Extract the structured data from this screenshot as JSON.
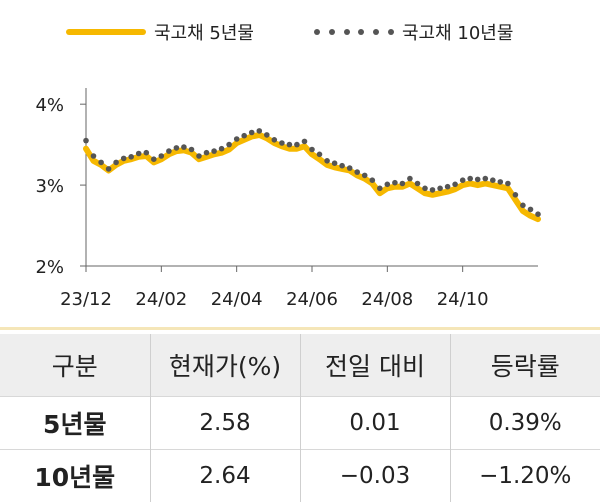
{
  "legend": [
    {
      "label": "국고채 5년물",
      "style": "line",
      "color": "#F6B800"
    },
    {
      "label": "국고채 10년물",
      "style": "dots",
      "color": "#555555"
    }
  ],
  "chart_data": {
    "type": "line",
    "x_ticks": [
      "23/12",
      "24/02",
      "24/04",
      "24/06",
      "24/08",
      "24/10"
    ],
    "y_ticks": [
      "4%",
      "3%",
      "2%"
    ],
    "ylim": [
      2.0,
      4.2
    ],
    "y_unit": "%",
    "x_range": [
      0,
      120
    ],
    "series": [
      {
        "name": "국고채 5년물",
        "color": "#F6B800",
        "points": [
          [
            0,
            3.45
          ],
          [
            2,
            3.3
          ],
          [
            4,
            3.25
          ],
          [
            6,
            3.18
          ],
          [
            8,
            3.25
          ],
          [
            10,
            3.3
          ],
          [
            12,
            3.32
          ],
          [
            14,
            3.35
          ],
          [
            16,
            3.36
          ],
          [
            18,
            3.28
          ],
          [
            20,
            3.32
          ],
          [
            22,
            3.38
          ],
          [
            24,
            3.42
          ],
          [
            26,
            3.43
          ],
          [
            28,
            3.4
          ],
          [
            30,
            3.32
          ],
          [
            32,
            3.35
          ],
          [
            34,
            3.38
          ],
          [
            36,
            3.4
          ],
          [
            38,
            3.44
          ],
          [
            40,
            3.52
          ],
          [
            42,
            3.56
          ],
          [
            44,
            3.6
          ],
          [
            46,
            3.62
          ],
          [
            48,
            3.58
          ],
          [
            50,
            3.52
          ],
          [
            52,
            3.48
          ],
          [
            54,
            3.45
          ],
          [
            56,
            3.45
          ],
          [
            58,
            3.48
          ],
          [
            60,
            3.38
          ],
          [
            62,
            3.32
          ],
          [
            64,
            3.25
          ],
          [
            66,
            3.22
          ],
          [
            68,
            3.2
          ],
          [
            70,
            3.18
          ],
          [
            72,
            3.12
          ],
          [
            74,
            3.08
          ],
          [
            76,
            3.02
          ],
          [
            78,
            2.9
          ],
          [
            80,
            2.96
          ],
          [
            82,
            2.98
          ],
          [
            84,
            2.98
          ],
          [
            86,
            3.02
          ],
          [
            88,
            2.96
          ],
          [
            90,
            2.9
          ],
          [
            92,
            2.88
          ],
          [
            94,
            2.9
          ],
          [
            96,
            2.92
          ],
          [
            98,
            2.95
          ],
          [
            100,
            3.0
          ],
          [
            102,
            3.02
          ],
          [
            104,
            3.0
          ],
          [
            106,
            3.02
          ],
          [
            108,
            3.0
          ],
          [
            110,
            2.98
          ],
          [
            112,
            2.96
          ],
          [
            114,
            2.82
          ],
          [
            116,
            2.68
          ],
          [
            118,
            2.62
          ],
          [
            120,
            2.58
          ]
        ]
      },
      {
        "name": "국고채 10년물",
        "color": "#555555",
        "points": [
          [
            0,
            3.55
          ],
          [
            2,
            3.36
          ],
          [
            4,
            3.28
          ],
          [
            6,
            3.2
          ],
          [
            8,
            3.28
          ],
          [
            10,
            3.33
          ],
          [
            12,
            3.35
          ],
          [
            14,
            3.39
          ],
          [
            16,
            3.4
          ],
          [
            18,
            3.32
          ],
          [
            20,
            3.36
          ],
          [
            22,
            3.42
          ],
          [
            24,
            3.46
          ],
          [
            26,
            3.47
          ],
          [
            28,
            3.44
          ],
          [
            30,
            3.36
          ],
          [
            32,
            3.4
          ],
          [
            34,
            3.42
          ],
          [
            36,
            3.45
          ],
          [
            38,
            3.5
          ],
          [
            40,
            3.57
          ],
          [
            42,
            3.61
          ],
          [
            44,
            3.65
          ],
          [
            46,
            3.67
          ],
          [
            48,
            3.62
          ],
          [
            50,
            3.56
          ],
          [
            52,
            3.52
          ],
          [
            54,
            3.5
          ],
          [
            56,
            3.5
          ],
          [
            58,
            3.54
          ],
          [
            60,
            3.44
          ],
          [
            62,
            3.38
          ],
          [
            64,
            3.3
          ],
          [
            66,
            3.27
          ],
          [
            68,
            3.24
          ],
          [
            70,
            3.21
          ],
          [
            72,
            3.16
          ],
          [
            74,
            3.12
          ],
          [
            76,
            3.06
          ],
          [
            78,
            2.96
          ],
          [
            80,
            3.01
          ],
          [
            82,
            3.03
          ],
          [
            84,
            3.02
          ],
          [
            86,
            3.08
          ],
          [
            88,
            3.02
          ],
          [
            90,
            2.96
          ],
          [
            92,
            2.94
          ],
          [
            94,
            2.96
          ],
          [
            96,
            2.98
          ],
          [
            98,
            3.01
          ],
          [
            100,
            3.06
          ],
          [
            102,
            3.08
          ],
          [
            104,
            3.07
          ],
          [
            106,
            3.08
          ],
          [
            108,
            3.06
          ],
          [
            110,
            3.04
          ],
          [
            112,
            3.02
          ],
          [
            114,
            2.88
          ],
          [
            116,
            2.75
          ],
          [
            118,
            2.7
          ],
          [
            120,
            2.64
          ]
        ]
      }
    ]
  },
  "table": {
    "headers": [
      "구분",
      "현재가(%)",
      "전일 대비",
      "등락률"
    ],
    "rows": [
      [
        "5년물",
        "2.58",
        "0.01",
        "0.39%"
      ],
      [
        "10년물",
        "2.64",
        "−0.03",
        "−1.20%"
      ]
    ]
  }
}
